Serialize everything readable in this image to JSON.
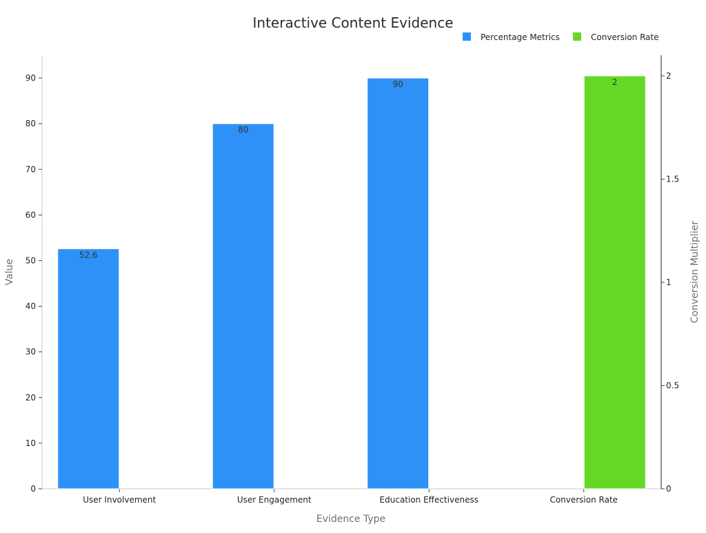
{
  "chart_data": {
    "type": "bar",
    "title": "Interactive Content Evidence",
    "xlabel": "Evidence Type",
    "ylabel": "Value",
    "y2label": "Conversion Multiplier",
    "categories": [
      "User Involvement",
      "User Engagement",
      "Education Effectiveness",
      "Conversion Rate"
    ],
    "ylim": [
      0,
      95
    ],
    "y2lim": [
      0,
      2.1
    ],
    "yticks": [
      0,
      10,
      20,
      30,
      40,
      50,
      60,
      70,
      80,
      90
    ],
    "y2ticks": [
      0,
      0.5,
      1,
      1.5,
      2
    ],
    "y2ticks_text": [
      "0",
      "0.5",
      "1",
      "1.5",
      "2"
    ],
    "grid": false,
    "legend_position": "top-right",
    "series": [
      {
        "name": "Percentage Metrics",
        "axis": "left",
        "color": "#2e91f7",
        "values": [
          52.6,
          80,
          90,
          null
        ],
        "labels": [
          "52.6",
          "80",
          "90",
          ""
        ]
      },
      {
        "name": "Conversion Rate",
        "axis": "right",
        "color": "#65d826",
        "values": [
          null,
          null,
          null,
          2
        ],
        "labels": [
          "",
          "",
          "",
          "2"
        ]
      }
    ]
  }
}
